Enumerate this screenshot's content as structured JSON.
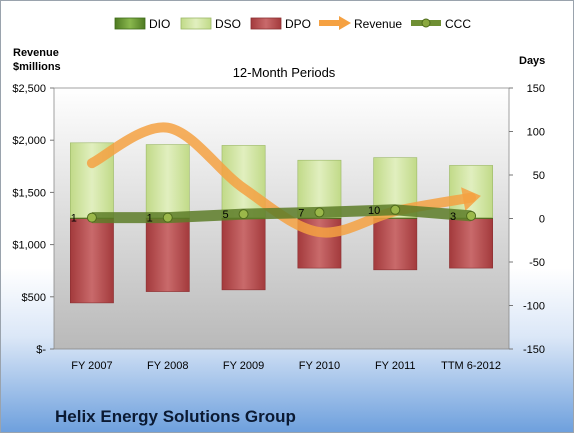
{
  "chart_data": {
    "type": "bar",
    "title": "12-Month Periods",
    "categories": [
      "FY 2007",
      "FY 2008",
      "FY 2009",
      "FY 2010",
      "FY 2011",
      "TTM 6-2012"
    ],
    "left_axis": {
      "label_line1": "Revenue",
      "label_line2": "$millions",
      "min": 0,
      "max": 2500,
      "ticks": [
        "$-",
        "$500",
        "$1,000",
        "$1,500",
        "$2,000",
        "$2,500"
      ]
    },
    "right_axis": {
      "label": "Days",
      "min": -150,
      "max": 150,
      "ticks": [
        "-150",
        "-100",
        "-50",
        "0",
        "50",
        "100",
        "150"
      ]
    },
    "series": [
      {
        "name": "DIO",
        "kind": "stacked-bar",
        "color": "#5e8a2a",
        "values": [
          1,
          1,
          1,
          1,
          1,
          1
        ]
      },
      {
        "name": "DSO",
        "kind": "stacked-bar",
        "color": "#c8df96",
        "values": [
          86,
          84,
          83,
          66,
          69,
          60
        ]
      },
      {
        "name": "DPO",
        "kind": "stacked-bar-negative",
        "color": "#b5484a",
        "values": [
          -97,
          -84,
          -82,
          -57,
          -59,
          -57
        ]
      },
      {
        "name": "Revenue",
        "kind": "smooth-line-arrow",
        "color": "#f5a142",
        "values": [
          1780,
          2120,
          1540,
          1120,
          1320,
          1450
        ]
      },
      {
        "name": "CCC",
        "kind": "line-markers",
        "color": "#6f8f34",
        "values": [
          1,
          1,
          5,
          7,
          10,
          3
        ]
      }
    ],
    "ccc_labels": [
      "1",
      "1",
      "5",
      "7",
      "10",
      "3"
    ],
    "grid": false,
    "legend_position": "top"
  },
  "footer": {
    "company": "Helix Energy Solutions Group"
  }
}
